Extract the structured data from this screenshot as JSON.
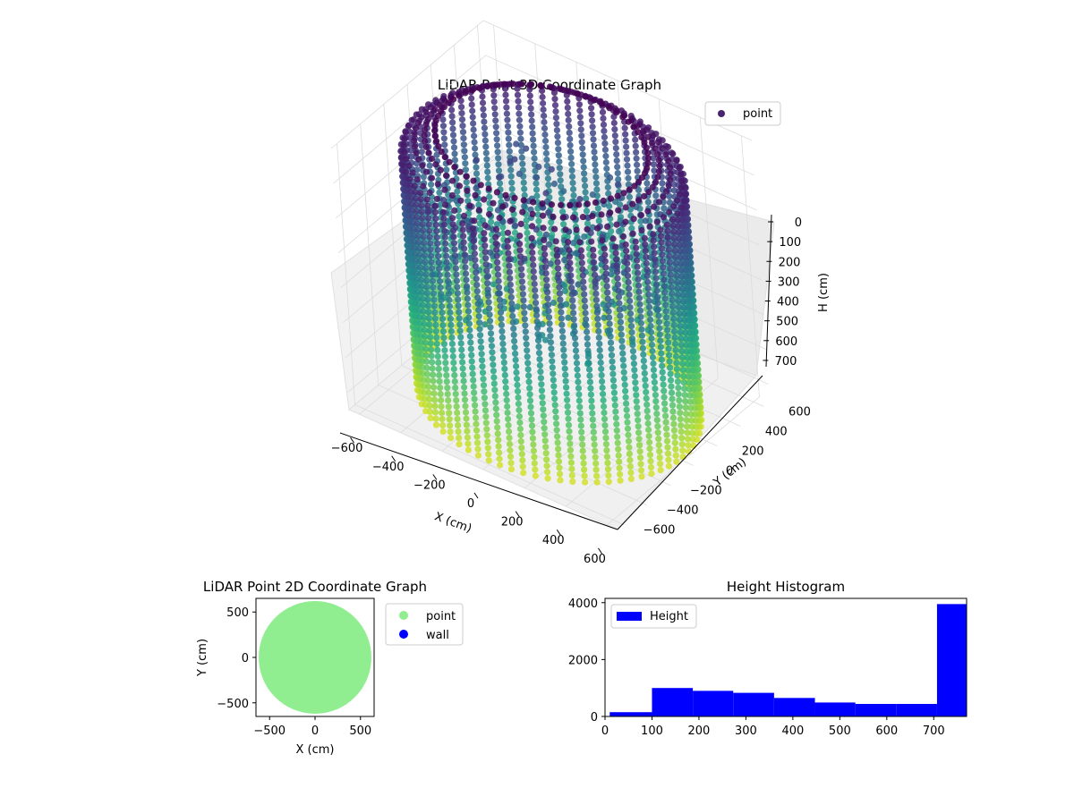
{
  "chart_data": [
    {
      "type": "scatter3d",
      "title": "LiDAR Point 3D Coordinate Graph",
      "xlabel": "X (cm)",
      "ylabel": "Y (cm)",
      "zlabel": "H (cm)",
      "xlim": [
        -650,
        650
      ],
      "ylim": [
        -650,
        650
      ],
      "zlim": [
        0,
        750
      ],
      "zaxis_inverted": true,
      "xticks": [
        "−600",
        "−400",
        "−200",
        "0",
        "200",
        "400",
        "600"
      ],
      "yticks": [
        "−600",
        "−400",
        "−200",
        "0",
        "200",
        "400",
        "600"
      ],
      "zticks": [
        "0",
        "100",
        "200",
        "300",
        "400",
        "500",
        "600",
        "700"
      ],
      "colormap": "viridis",
      "legend": {
        "labels": [
          "point"
        ],
        "placement": "upper-right"
      },
      "description": {
        "wall_radius_cm": 600,
        "wall_columns": 72,
        "wall_height_range_cm": [
          0,
          750
        ],
        "interior_cluster_height_cm": [
          150,
          450
        ]
      }
    },
    {
      "type": "scatter",
      "title": "LiDAR Point 2D Coordinate Graph",
      "xlabel": "X (cm)",
      "ylabel": "Y (cm)",
      "xlim": [
        -650,
        650
      ],
      "ylim": [
        -650,
        650
      ],
      "xticks": [
        "−500",
        "0",
        "500"
      ],
      "yticks": [
        "−500",
        "0",
        "500"
      ],
      "series": [
        {
          "name": "point",
          "color": "#90ee90",
          "shape": "disk",
          "radius_cm": 620
        },
        {
          "name": "wall",
          "color": "#0000ff",
          "shape": "none"
        }
      ],
      "legend": {
        "labels": [
          "point",
          "wall"
        ],
        "placement": "outside-right"
      }
    },
    {
      "type": "histogram",
      "title": "Height Histogram",
      "series_name": "Height",
      "color": "#0000ff",
      "bin_edges": [
        10,
        100,
        187,
        273,
        360,
        447,
        533,
        620,
        707,
        770
      ],
      "counts": [
        150,
        1000,
        900,
        830,
        650,
        490,
        440,
        440,
        3950
      ],
      "xlim": [
        0,
        770
      ],
      "ylim": [
        0,
        4150
      ],
      "xticks": [
        0,
        100,
        200,
        300,
        400,
        500,
        600,
        700
      ],
      "yticks": [
        0,
        2000,
        4000
      ],
      "legend": {
        "labels": [
          "Height"
        ],
        "placement": "upper-left"
      }
    }
  ]
}
